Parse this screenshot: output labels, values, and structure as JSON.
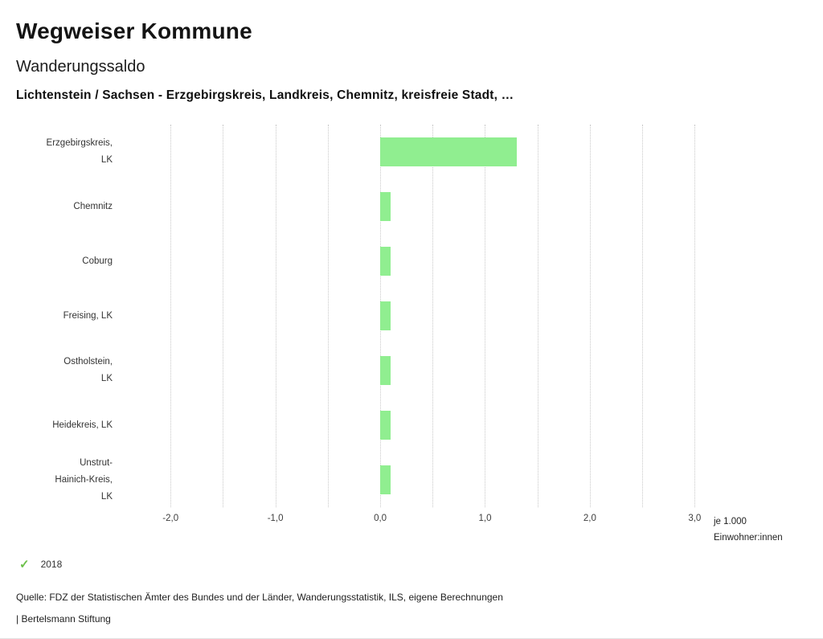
{
  "header": {
    "app_title": "Wegweiser Kommune",
    "chart_title": "Wanderungssaldo",
    "filter_line": "Lichtenstein / Sachsen - Erzgebirgskreis, Landkreis, Chemnitz, kreisfreie Stadt, …"
  },
  "chart_data": {
    "type": "bar",
    "orientation": "horizontal",
    "title": "Wanderungssaldo",
    "categories": [
      "Erzgebirgskreis, LK",
      "Chemnitz",
      "Coburg",
      "Freising, LK",
      "Ostholstein, LK",
      "Heidekreis, LK",
      "Unstrut-Hainich-Kreis, LK"
    ],
    "category_label_lines": [
      [
        "Erzgebirgskreis,",
        "LK"
      ],
      [
        "Chemnitz"
      ],
      [
        "Coburg"
      ],
      [
        "Freising, LK"
      ],
      [
        "Ostholstein,",
        "LK"
      ],
      [
        "Heidekreis, LK"
      ],
      [
        "Unstrut-",
        "Hainich-Kreis,",
        "LK"
      ]
    ],
    "series": [
      {
        "name": "2018",
        "values": [
          1.3,
          0.1,
          0.1,
          0.1,
          0.1,
          0.1,
          0.1
        ]
      }
    ],
    "xlim": [
      -2.5,
      3.12
    ],
    "x_ticks": [
      -2,
      -1,
      0,
      1,
      2,
      3
    ],
    "x_tick_labels": [
      "-2,0",
      "-1,0",
      "0,0",
      "1,0",
      "2,0",
      "3,0"
    ],
    "x_gridlines": [
      -2,
      -1.5,
      -1,
      -0.5,
      0,
      0.5,
      1,
      1.5,
      2,
      2.5,
      3
    ],
    "xlabel": "je 1.000 Einwohner:innen",
    "xlabel_lines": [
      "je 1.000",
      "Einwohner:innen"
    ],
    "grid": true,
    "bar_color": "#90ee90",
    "legend_position": "bottom-left"
  },
  "legend": {
    "items": [
      {
        "label": "2018",
        "icon": "check",
        "color": "#6cc04a"
      }
    ]
  },
  "footer": {
    "source": "Quelle: FDZ der Statistischen Ämter des Bundes und der Länder, Wanderungsstatistik, ILS, eigene Berechnungen",
    "branding": "| Bertelsmann Stiftung"
  }
}
